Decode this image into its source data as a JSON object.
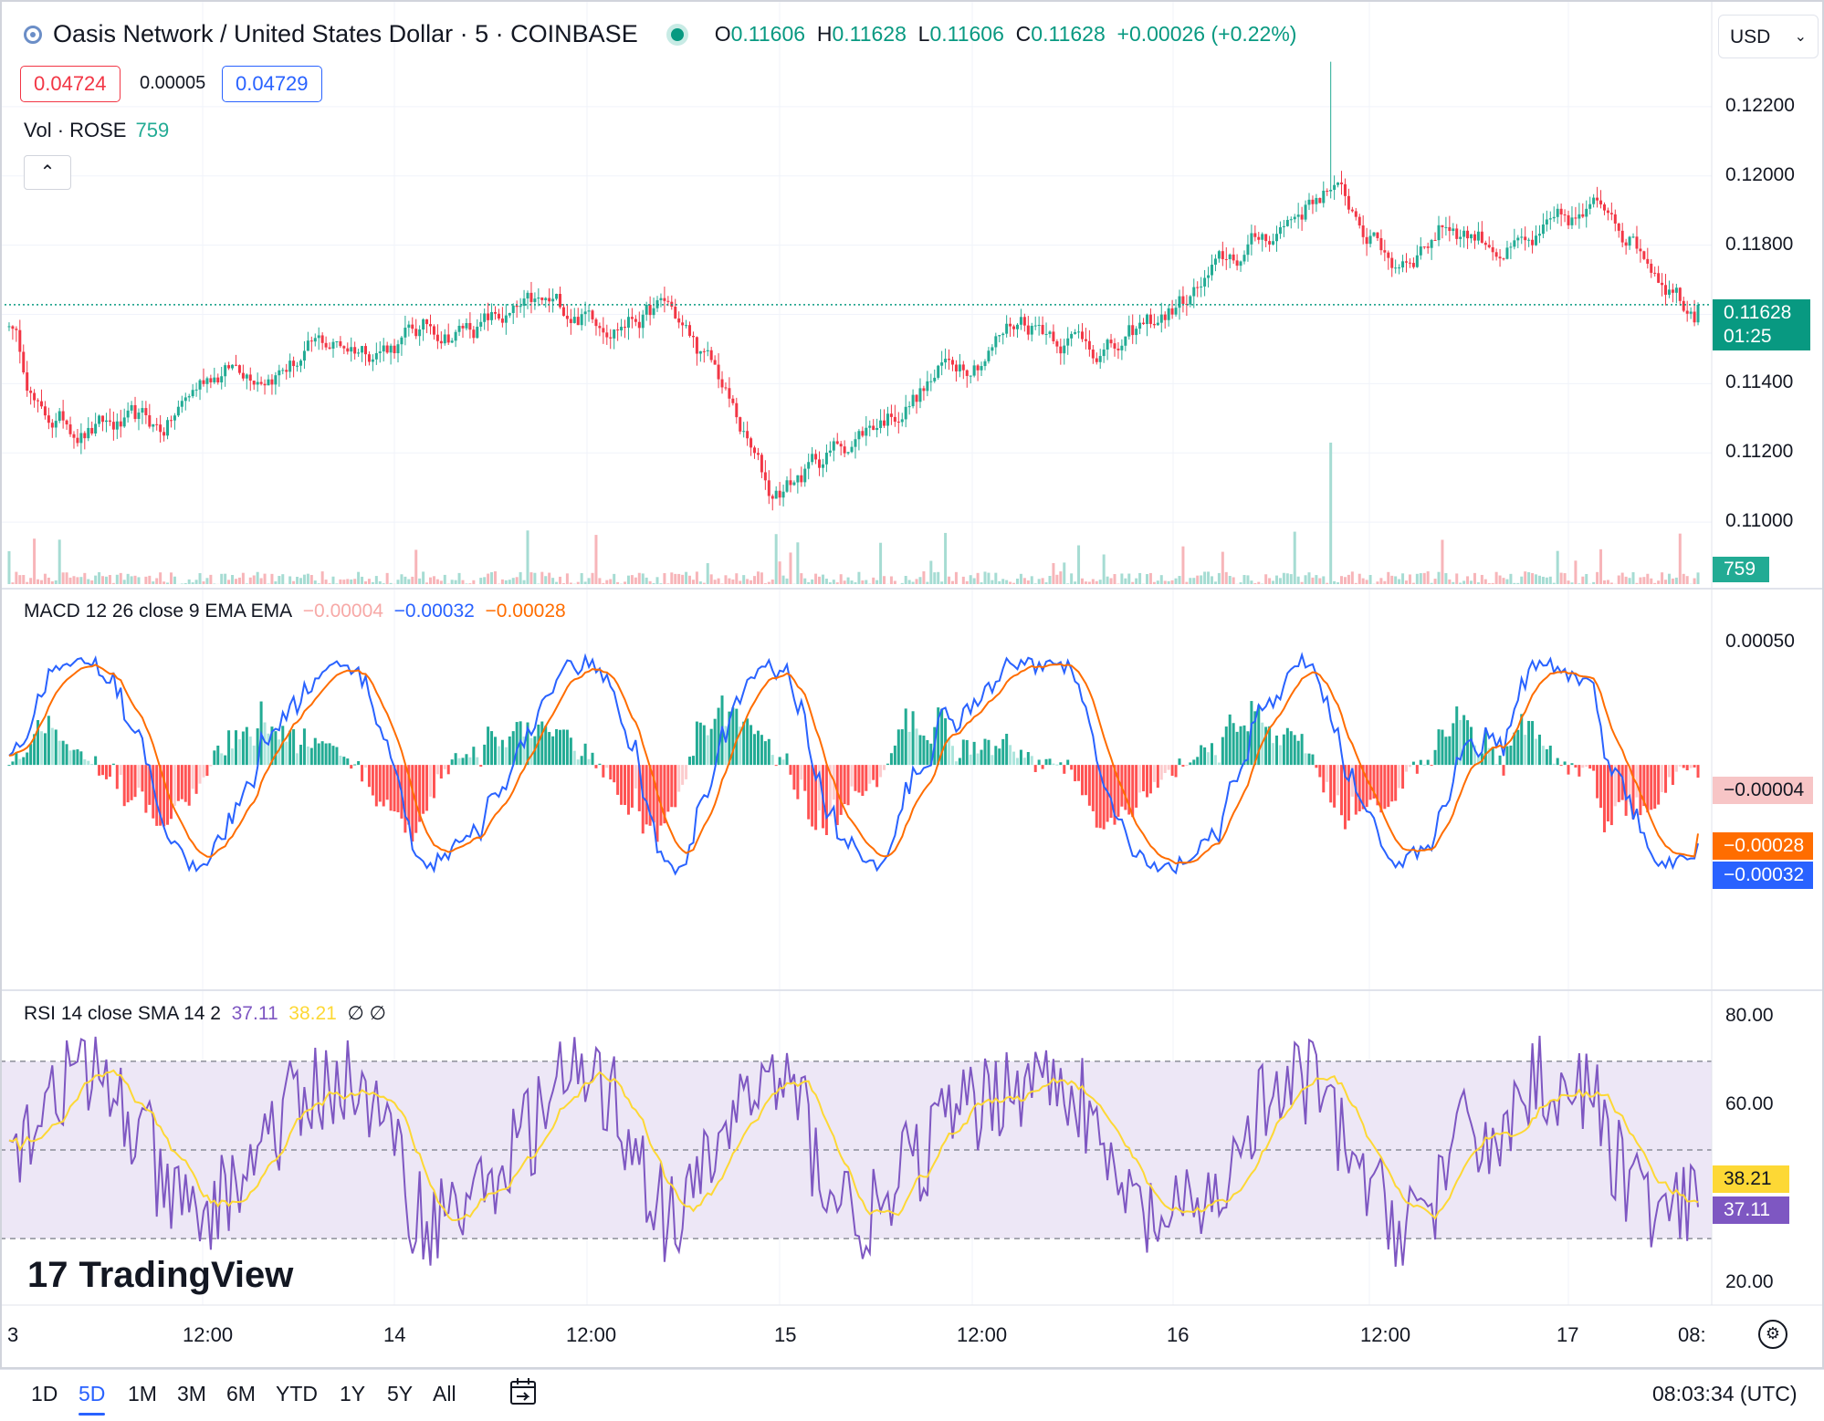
{
  "header": {
    "symbol_title": "Oasis Network / United States Dollar · 5 · COINBASE",
    "open_key": "O",
    "open": "0.11606",
    "high_key": "H",
    "high": "0.11628",
    "low_key": "L",
    "low": "0.11606",
    "close_key": "C",
    "close": "0.11628",
    "change": "+0.00026 (+0.22%)",
    "sell_price": "0.04724",
    "spread": "0.00005",
    "buy_price": "0.04729",
    "currency": "USD"
  },
  "volume": {
    "label": "Vol · ROSE",
    "value": "759"
  },
  "macd": {
    "label": "MACD 12 26 close 9 EMA EMA",
    "histogram": "−0.00004",
    "macd": "−0.00032",
    "signal": "−0.00028"
  },
  "rsi": {
    "label": "RSI 14 close SMA 14 2",
    "rsi": "37.11",
    "sma": "38.21",
    "extra": "∅ ∅"
  },
  "price_axis": [
    "0.12200",
    "0.12000",
    "0.11800",
    "0.11400",
    "0.11200",
    "0.11000"
  ],
  "price_tag": {
    "price": "0.11628",
    "countdown": "01:25"
  },
  "vol_tag": "759",
  "macd_axis": [
    "0.00050"
  ],
  "macd_tags": {
    "hist": "−0.00004",
    "signal": "−0.00028",
    "macd": "−0.00032"
  },
  "rsi_axis": [
    "80.00",
    "60.00",
    "20.00"
  ],
  "rsi_tags": {
    "sma": "38.21",
    "rsi": "37.11"
  },
  "time_axis": [
    "3",
    "12:00",
    "14",
    "12:00",
    "15",
    "12:00",
    "16",
    "12:00",
    "17",
    "08:"
  ],
  "ranges": [
    "1D",
    "5D",
    "1M",
    "3M",
    "6M",
    "YTD",
    "1Y",
    "5Y",
    "All"
  ],
  "active_range": "5D",
  "clock": "08:03:34 (UTC)",
  "logo_text": "TradingView",
  "colors": {
    "up": "#22ab94",
    "down": "#f23645",
    "macd": "#2962ff",
    "signal": "#ff6d00",
    "rsi": "#7e57c2",
    "rsi_sma": "#fdd835",
    "rsi_band": "#ede7f6"
  },
  "chart_data": [
    {
      "type": "candlestick",
      "title": "Oasis Network / United States Dollar · 5 · COINBASE",
      "ylim": [
        0.109,
        0.1235
      ],
      "keypoints_x": [
        0,
        0.02,
        0.09,
        0.12,
        0.28,
        0.39,
        0.42,
        0.45,
        0.6,
        0.66,
        0.74,
        0.78,
        0.82,
        0.85,
        0.9,
        0.95,
        1.0
      ],
      "keypoints_price": [
        0.1159,
        0.113,
        0.1125,
        0.1144,
        0.1158,
        0.1162,
        0.114,
        0.1107,
        0.116,
        0.115,
        0.118,
        0.1198,
        0.1175,
        0.1188,
        0.1178,
        0.119,
        0.11628
      ],
      "spike_high": 0.1233,
      "last": 0.11628
    },
    {
      "type": "bar",
      "title": "Vol · ROSE",
      "last": 759
    },
    {
      "type": "line",
      "title": "MACD 12 26 close 9 EMA EMA",
      "ylim": [
        -0.0009,
        0.0007
      ],
      "series": [
        {
          "name": "MACD",
          "last": -0.00032
        },
        {
          "name": "Signal",
          "last": -0.00028
        },
        {
          "name": "Histogram",
          "last": -4e-05
        }
      ]
    },
    {
      "type": "line",
      "title": "RSI 14 close SMA 14 2",
      "ylim": [
        15,
        85
      ],
      "bands": [
        30,
        50,
        70
      ],
      "series": [
        {
          "name": "RSI",
          "last": 37.11
        },
        {
          "name": "SMA",
          "last": 38.21
        }
      ]
    }
  ]
}
